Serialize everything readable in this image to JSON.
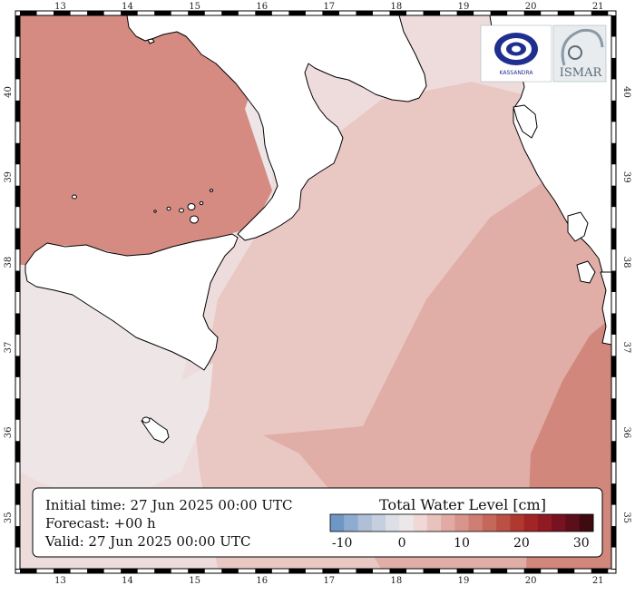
{
  "map": {
    "lon_labels": [
      "13",
      "14",
      "15",
      "16",
      "17",
      "18",
      "19",
      "20",
      "21"
    ],
    "lat_labels": [
      "40",
      "39",
      "38",
      "37",
      "36",
      "35"
    ],
    "lon_range": [
      12.4,
      21.2
    ],
    "lat_range": [
      34.4,
      40.9
    ]
  },
  "info": {
    "initial_time": "Initial time: 27 Jun 2025 00:00 UTC",
    "forecast": "Forecast: +00 h",
    "valid": "Valid: 27 Jun 2025 00:00 UTC"
  },
  "colorbar": {
    "title": "Total Water Level [cm]",
    "ticks": [
      "-10",
      "0",
      "10",
      "20",
      "30"
    ],
    "colors": [
      "#6f97c4",
      "#8eaccf",
      "#aebfd6",
      "#c5cfdd",
      "#dcdfe6",
      "#ece8ea",
      "#efd8d6",
      "#e8c2bd",
      "#e1aba4",
      "#d8958c",
      "#cf7e73",
      "#c5675b",
      "#bb5044",
      "#b0392f",
      "#a32425",
      "#8f1a22",
      "#771320",
      "#5c0f18",
      "#3f0a10"
    ]
  },
  "logos": {
    "left_label": "KASSANDRA",
    "right_label": "ISMAR"
  },
  "colors": {
    "land": "#ffffff",
    "sea_neutral": "#ede5e6",
    "sea_light": "#eedcdc",
    "sea_mid": "#e9c7c3",
    "sea_warm": "#e0aea7",
    "sea_strong": "#d2877d",
    "sea_tyrrhenian": "#d58b82",
    "frame": "#000000"
  }
}
